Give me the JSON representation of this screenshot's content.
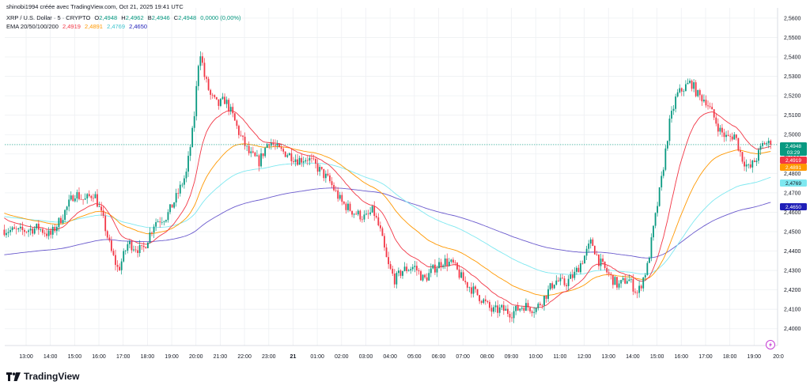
{
  "header": {
    "credit": "shinobi1994 créée avec TradingView.com, Oct 21, 2025 19:41 UTC",
    "symbol": "XRP / U.S. Dollar · 5 · CRYPTO",
    "o_label": "O",
    "o_value": "2,4948",
    "h_label": "H",
    "h_value": "2,4962",
    "b_label": "B",
    "b_value": "2,4946",
    "c_label": "C",
    "c_value": "2,4948",
    "change": "0,0000 (0,00%)",
    "ema_label": "EMA 20/50/100/200",
    "ema_values": [
      "2,4919",
      "2,4891",
      "2,4769",
      "2,4650"
    ]
  },
  "colors": {
    "up": "#089981",
    "down": "#f23645",
    "ema20": "#f23645",
    "ema50": "#ff9800",
    "ema100": "#7ee8f0",
    "ema200": "#6a5acd",
    "ema200_tag": "#1f1fb8",
    "price_tag": "#089981",
    "grid": "#eef0f3"
  },
  "brand": {
    "name": "TradingView",
    "logo_icon": "tradingview-logo-icon"
  },
  "tags": {
    "price": "2,4948",
    "countdown": "03:29",
    "ema20": "2,4919",
    "ema50": "2,4891",
    "ema100": "2,4769",
    "ema200": "2,4650"
  },
  "chart_data": {
    "type": "candlestick",
    "ylim": [
      2.395,
      2.562
    ],
    "y_ticks": [
      "2,5600",
      "2,5500",
      "2,5400",
      "2,5300",
      "2,5200",
      "2,5100",
      "2,5000",
      "2,4900",
      "2,4800",
      "2,4700",
      "2,4600",
      "2,4500",
      "2,4400",
      "2,4300",
      "2,4200",
      "2,4100",
      "2,4000"
    ],
    "y_tick_values": [
      2.56,
      2.55,
      2.54,
      2.53,
      2.52,
      2.51,
      2.5,
      2.49,
      2.48,
      2.47,
      2.46,
      2.45,
      2.44,
      2.43,
      2.42,
      2.41,
      2.4
    ],
    "x_ticks": [
      "13:00",
      "14:00",
      "15:00",
      "16:00",
      "17:00",
      "18:00",
      "19:00",
      "20:00",
      "21:00",
      "22:00",
      "23:00",
      "21",
      "01:00",
      "02:00",
      "03:00",
      "04:00",
      "05:00",
      "06:00",
      "07:00",
      "08:00",
      "09:00",
      "10:00",
      "11:00",
      "12:00",
      "13:00",
      "14:00",
      "15:00",
      "16:00",
      "17:00",
      "18:00",
      "19:00",
      "20:0"
    ],
    "x_tick_hours": [
      0,
      1,
      2,
      3,
      4,
      5,
      6,
      7,
      8,
      9,
      10,
      11,
      12,
      13,
      14,
      15,
      16,
      17,
      18,
      19,
      20,
      21,
      22,
      23,
      24,
      25,
      26,
      27,
      28,
      29,
      30,
      31
    ],
    "x_start_hour": -0.9,
    "x_end_hour": 30.7,
    "current_price": 2.4948,
    "price_anchors": [
      [
        -0.9,
        2.451
      ],
      [
        -0.3,
        2.45
      ],
      [
        0.5,
        2.452
      ],
      [
        1.0,
        2.448
      ],
      [
        1.5,
        2.458
      ],
      [
        2.0,
        2.47
      ],
      [
        2.4,
        2.466
      ],
      [
        2.8,
        2.47
      ],
      [
        3.2,
        2.455
      ],
      [
        3.5,
        2.44
      ],
      [
        3.8,
        2.43
      ],
      [
        4.2,
        2.444
      ],
      [
        4.8,
        2.44
      ],
      [
        5.3,
        2.455
      ],
      [
        5.8,
        2.458
      ],
      [
        6.2,
        2.468
      ],
      [
        6.6,
        2.48
      ],
      [
        6.9,
        2.505
      ],
      [
        7.15,
        2.545
      ],
      [
        7.35,
        2.53
      ],
      [
        7.6,
        2.52
      ],
      [
        7.9,
        2.515
      ],
      [
        8.2,
        2.518
      ],
      [
        8.5,
        2.51
      ],
      [
        8.8,
        2.5
      ],
      [
        9.2,
        2.49
      ],
      [
        9.6,
        2.486
      ],
      [
        10.0,
        2.497
      ],
      [
        10.4,
        2.492
      ],
      [
        10.8,
        2.49
      ],
      [
        11.2,
        2.487
      ],
      [
        11.6,
        2.488
      ],
      [
        12.0,
        2.483
      ],
      [
        12.5,
        2.476
      ],
      [
        13.0,
        2.465
      ],
      [
        13.5,
        2.46
      ],
      [
        14.0,
        2.457
      ],
      [
        14.3,
        2.461
      ],
      [
        14.6,
        2.45
      ],
      [
        14.9,
        2.433
      ],
      [
        15.2,
        2.425
      ],
      [
        15.5,
        2.43
      ],
      [
        16.0,
        2.432
      ],
      [
        16.4,
        2.425
      ],
      [
        16.8,
        2.431
      ],
      [
        17.2,
        2.435
      ],
      [
        17.6,
        2.433
      ],
      [
        18.0,
        2.425
      ],
      [
        18.4,
        2.42
      ],
      [
        18.8,
        2.415
      ],
      [
        19.2,
        2.409
      ],
      [
        19.6,
        2.41
      ],
      [
        20.0,
        2.408
      ],
      [
        20.5,
        2.412
      ],
      [
        21.0,
        2.41
      ],
      [
        21.4,
        2.417
      ],
      [
        21.8,
        2.425
      ],
      [
        22.2,
        2.423
      ],
      [
        22.6,
        2.428
      ],
      [
        23.0,
        2.437
      ],
      [
        23.3,
        2.445
      ],
      [
        23.6,
        2.435
      ],
      [
        24.0,
        2.428
      ],
      [
        24.4,
        2.422
      ],
      [
        24.8,
        2.426
      ],
      [
        25.2,
        2.418
      ],
      [
        25.6,
        2.432
      ],
      [
        25.9,
        2.455
      ],
      [
        26.2,
        2.478
      ],
      [
        26.5,
        2.505
      ],
      [
        26.8,
        2.52
      ],
      [
        27.1,
        2.524
      ],
      [
        27.4,
        2.527
      ],
      [
        27.7,
        2.52
      ],
      [
        28.0,
        2.518
      ],
      [
        28.3,
        2.51
      ],
      [
        28.6,
        2.502
      ],
      [
        28.9,
        2.498
      ],
      [
        29.2,
        2.5
      ],
      [
        29.5,
        2.488
      ],
      [
        29.8,
        2.482
      ],
      [
        30.1,
        2.488
      ],
      [
        30.4,
        2.496
      ],
      [
        30.7,
        2.4948
      ]
    ]
  }
}
